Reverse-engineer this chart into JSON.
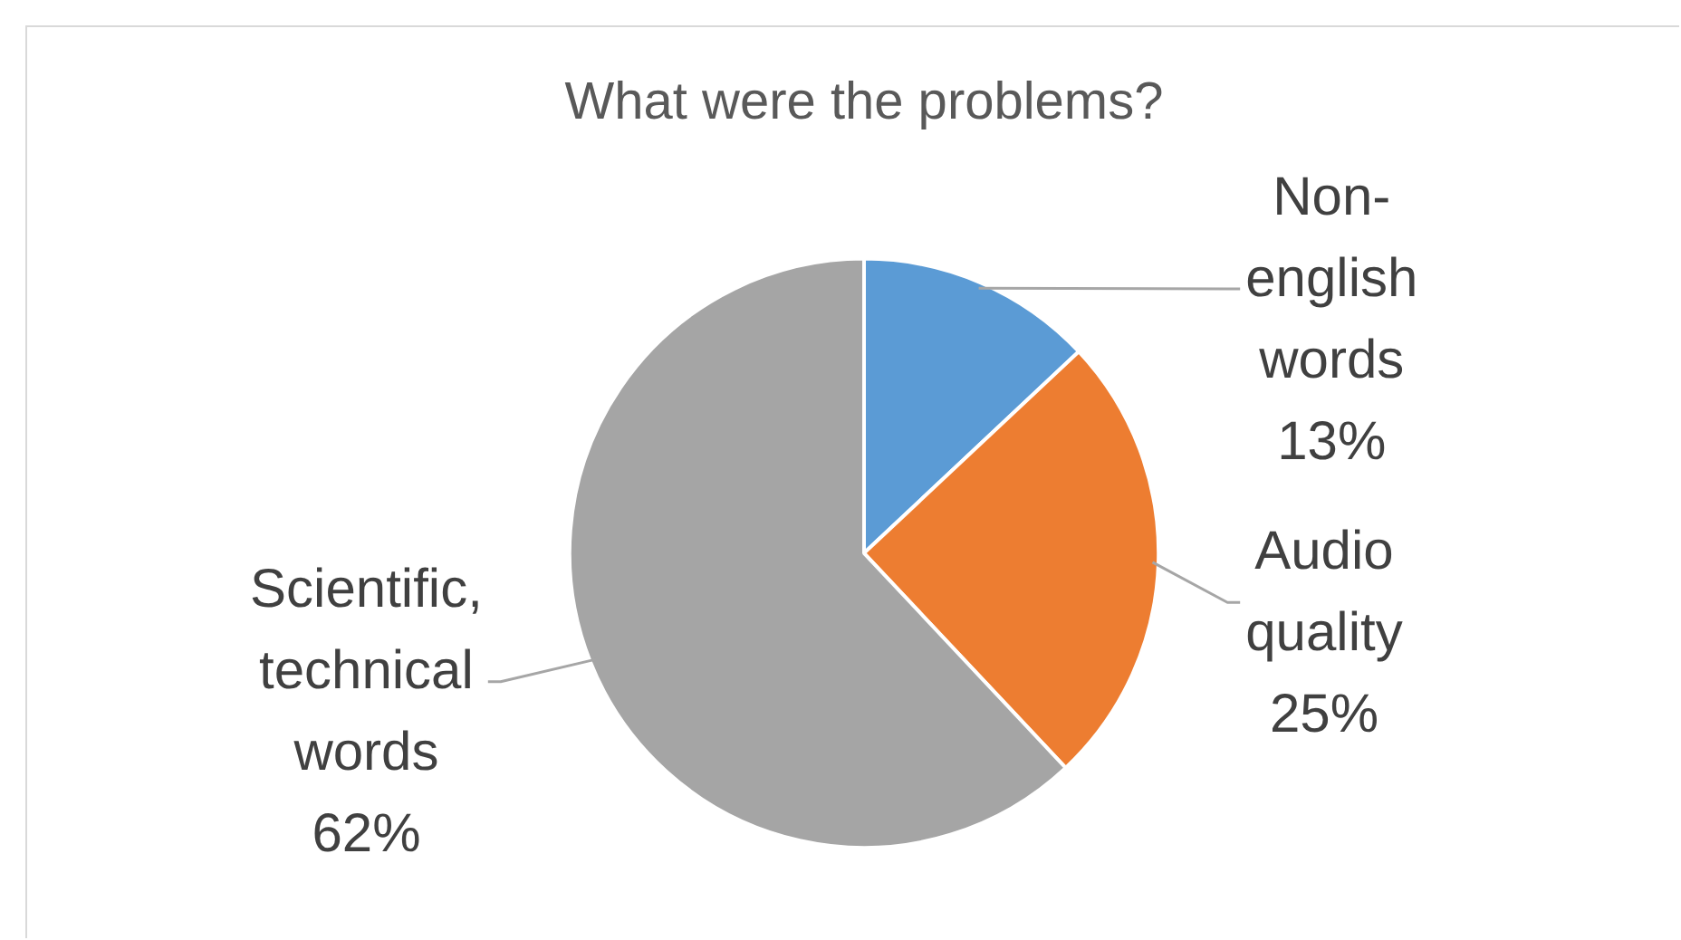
{
  "chart_data": {
    "type": "pie",
    "title": "What were the problems?",
    "categories": [
      "Non-english words",
      "Audio quality",
      "Scientific, technical words"
    ],
    "values": [
      13,
      25,
      62
    ],
    "colors": [
      "#5b9bd5",
      "#ed7d31",
      "#a5a5a5"
    ],
    "value_labels": [
      "13%",
      "25%",
      "62%"
    ]
  }
}
